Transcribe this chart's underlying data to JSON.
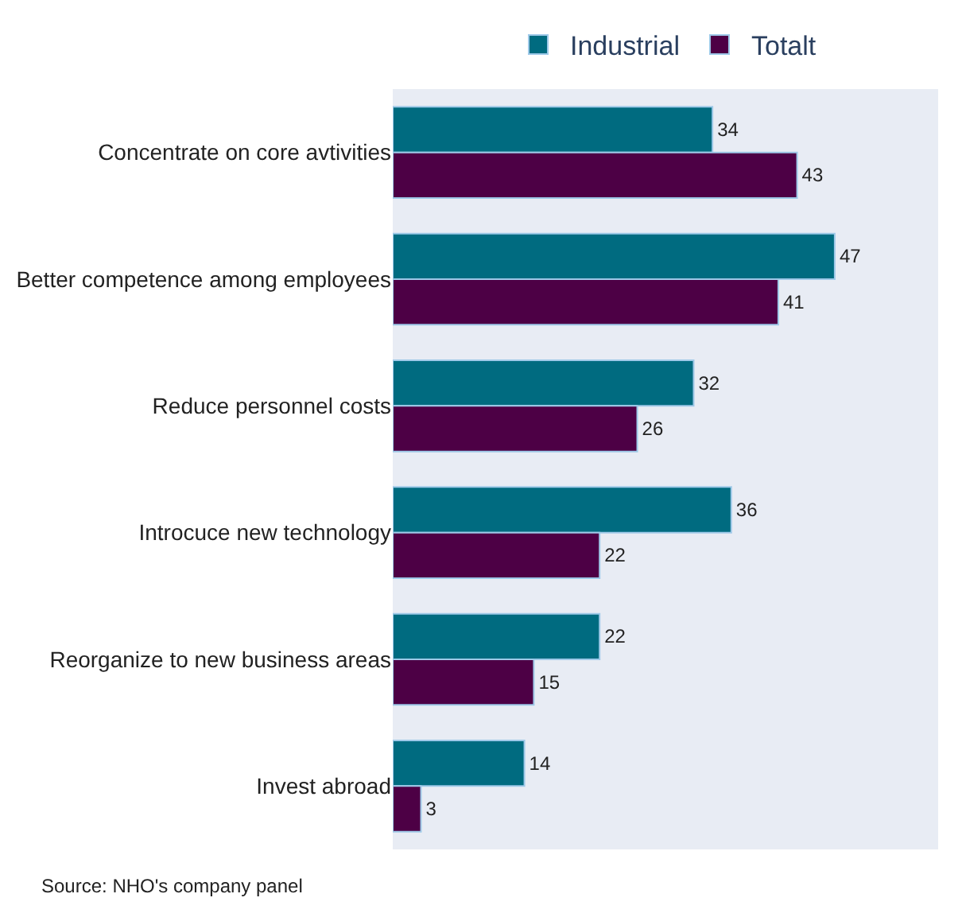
{
  "chart_data": {
    "type": "bar",
    "orientation": "horizontal",
    "categories": [
      "Concentrate on core avtivities",
      "Better competence among employees",
      "Reduce personnel costs",
      "Introcuce new technology",
      "Reorganize to new business areas",
      "Invest abroad"
    ],
    "series": [
      {
        "name": "Industrial",
        "color": "#006b80",
        "values": [
          34,
          47,
          32,
          36,
          22,
          14
        ]
      },
      {
        "name": "Totalt",
        "color": "#4d0045",
        "values": [
          43,
          41,
          26,
          22,
          15,
          3
        ]
      }
    ],
    "xlim": [
      0,
      58
    ],
    "tick_labels": "y",
    "grid": false,
    "legend": "top",
    "data_labels": true,
    "annotations": [
      "Source: NHO's company panel"
    ]
  }
}
